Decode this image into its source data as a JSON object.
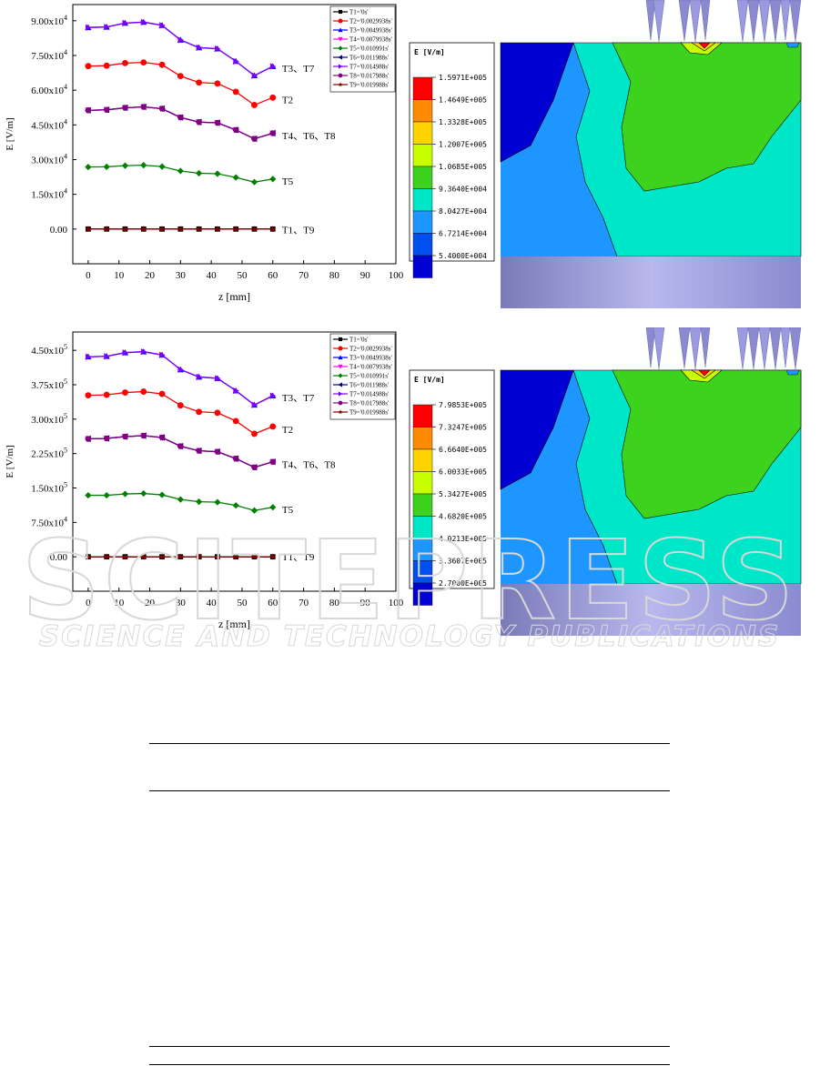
{
  "figures": [
    {
      "panel": "top",
      "colorbar": {
        "title": "E [V/m]",
        "levels": [
          "1.5971E+005",
          "1.4649E+005",
          "1.3328E+005",
          "1.2007E+005",
          "1.0685E+005",
          "9.3640E+004",
          "8.0427E+004",
          "6.7214E+004",
          "5.4000E+004"
        ],
        "colors": [
          "#ff0000",
          "#ff8c00",
          "#ffd200",
          "#c8ff00",
          "#3cd21e",
          "#00e6c8",
          "#1e96ff",
          "#0050f0",
          "#0000d2"
        ]
      }
    },
    {
      "panel": "bottom",
      "colorbar": {
        "title": "E [V/m]",
        "levels": [
          "7.9853E+005",
          "7.3247E+005",
          "6.6640E+005",
          "6.0033E+005",
          "5.3427E+005",
          "4.6820E+005",
          "4.0213E+005",
          "3.3607E+005",
          "2.7000E+005"
        ],
        "colors": [
          "#ff0000",
          "#ff8c00",
          "#ffd200",
          "#c8ff00",
          "#3cd21e",
          "#00e6c8",
          "#1e96ff",
          "#0050f0",
          "#0000d2"
        ]
      }
    }
  ],
  "watermark": {
    "main": "SCITEPRESS",
    "sub": "SCIENCE AND TECHNOLOGY PUBLICATIONS"
  },
  "chart_data": [
    {
      "type": "line",
      "xlabel": "z [mm]",
      "ylabel": "E [V/m]",
      "xlim": [
        -5,
        100
      ],
      "ylim": [
        -15000,
        97000
      ],
      "xticks": [
        "0",
        "10",
        "20",
        "30",
        "40",
        "50",
        "60",
        "70",
        "80",
        "90",
        "100"
      ],
      "yticks": [
        {
          "value": 0,
          "base": "0.00",
          "exp": ""
        },
        {
          "value": 15000,
          "base": "1.50x10",
          "exp": "4"
        },
        {
          "value": 30000,
          "base": "3.00x10",
          "exp": "4"
        },
        {
          "value": 45000,
          "base": "4.50x10",
          "exp": "4"
        },
        {
          "value": 60000,
          "base": "6.00x10",
          "exp": "4"
        },
        {
          "value": 75000,
          "base": "7.50x10",
          "exp": "4"
        },
        {
          "value": 90000,
          "base": "9.00x10",
          "exp": "4"
        }
      ],
      "x": [
        0,
        6,
        12,
        18,
        24,
        30,
        36,
        42,
        48,
        54,
        60
      ],
      "series": [
        {
          "name": "T1='0s'",
          "color": "#000000",
          "marker": "square",
          "values": [
            0,
            0,
            0,
            0,
            0,
            0,
            0,
            0,
            0,
            0,
            0
          ]
        },
        {
          "name": "T2='0.0029938s'",
          "color": "#ff0000",
          "marker": "circle",
          "values": [
            70400,
            70600,
            71700,
            72000,
            71000,
            66100,
            63300,
            62900,
            59300,
            53600,
            56800
          ]
        },
        {
          "name": "T3='0.0049938s'",
          "color": "#0000ff",
          "marker": "triangle-up",
          "values": [
            87100,
            87300,
            89000,
            89400,
            88000,
            81700,
            78400,
            77900,
            72500,
            66300,
            70300
          ]
        },
        {
          "name": "T4='0.0079938s'",
          "color": "#ff00ff",
          "marker": "triangle-down",
          "values": [
            51300,
            51500,
            52400,
            52800,
            52000,
            48200,
            46200,
            45900,
            42800,
            39000,
            41400
          ]
        },
        {
          "name": "T5='0.010991s'",
          "color": "#008000",
          "marker": "diamond",
          "values": [
            26800,
            26900,
            27400,
            27600,
            27000,
            25100,
            24100,
            23900,
            22300,
            20300,
            21600
          ]
        },
        {
          "name": "T6='0.011988s'",
          "color": "#000080",
          "marker": "triangle-left",
          "values": [
            51300,
            51500,
            52400,
            52800,
            52000,
            48200,
            46200,
            45900,
            42800,
            39000,
            41400
          ]
        },
        {
          "name": "T7='0.014988s'",
          "color": "#8000ff",
          "marker": "triangle-right",
          "values": [
            87100,
            87300,
            89000,
            89400,
            88000,
            81700,
            78400,
            77900,
            72500,
            66300,
            70300
          ]
        },
        {
          "name": "T8='0.017988s'",
          "color": "#800080",
          "marker": "hexagon",
          "values": [
            51300,
            51500,
            52400,
            52800,
            52000,
            48200,
            46200,
            45900,
            42800,
            39000,
            41400
          ]
        },
        {
          "name": "T9='0.019988s'",
          "color": "#800000",
          "marker": "star",
          "values": [
            0,
            0,
            0,
            0,
            0,
            0,
            0,
            0,
            0,
            0,
            0
          ]
        }
      ],
      "annotations": [
        {
          "text": "T3、T7",
          "x": 63,
          "y": 69500
        },
        {
          "text": "T2",
          "x": 63,
          "y": 56000
        },
        {
          "text": "T4、T6、T8",
          "x": 63,
          "y": 40500
        },
        {
          "text": "T5",
          "x": 63,
          "y": 20800
        },
        {
          "text": "T1、T9",
          "x": 63,
          "y": -200
        }
      ],
      "legend": "top-right",
      "grid": false
    },
    {
      "type": "line",
      "xlabel": "z [mm]",
      "ylabel": "E [V/m]",
      "xlim": [
        -5,
        100
      ],
      "ylim": [
        -75000,
        490000
      ],
      "xticks": [
        "0",
        "10",
        "20",
        "30",
        "40",
        "50",
        "60",
        "70",
        "80",
        "90",
        "100"
      ],
      "yticks": [
        {
          "value": 0,
          "base": "0.00",
          "exp": ""
        },
        {
          "value": 75000,
          "base": "7.50x10",
          "exp": "4"
        },
        {
          "value": 150000,
          "base": "1.50x10",
          "exp": "5"
        },
        {
          "value": 225000,
          "base": "2.25x10",
          "exp": "5"
        },
        {
          "value": 300000,
          "base": "3.00x10",
          "exp": "5"
        },
        {
          "value": 375000,
          "base": "3.75x10",
          "exp": "5"
        },
        {
          "value": 450000,
          "base": "4.50x10",
          "exp": "5"
        }
      ],
      "x": [
        0,
        6,
        12,
        18,
        24,
        30,
        36,
        42,
        48,
        54,
        60
      ],
      "series": [
        {
          "name": "T1='0s'",
          "color": "#000000",
          "marker": "square",
          "values": [
            0,
            0,
            0,
            0,
            0,
            0,
            0,
            0,
            0,
            0,
            0
          ]
        },
        {
          "name": "T2='0.0029938s'",
          "color": "#ff0000",
          "marker": "circle",
          "values": [
            352000,
            353000,
            358000,
            360000,
            355000,
            330000,
            316000,
            314000,
            296000,
            268000,
            284000
          ]
        },
        {
          "name": "T3='0.0049938s'",
          "color": "#0000ff",
          "marker": "triangle-up",
          "values": [
            436000,
            437000,
            445000,
            447000,
            440000,
            408000,
            392000,
            389000,
            362000,
            331000,
            351000
          ]
        },
        {
          "name": "T4='0.0079938s'",
          "color": "#ff00ff",
          "marker": "triangle-down",
          "values": [
            257000,
            258000,
            262000,
            264000,
            260000,
            241000,
            231000,
            229000,
            214000,
            195000,
            207000
          ]
        },
        {
          "name": "T5='0.010991s'",
          "color": "#008000",
          "marker": "diamond",
          "values": [
            134000,
            134000,
            137000,
            138000,
            135000,
            125000,
            120000,
            119000,
            112000,
            101000,
            108000
          ]
        },
        {
          "name": "T6='0.011988s'",
          "color": "#000080",
          "marker": "triangle-left",
          "values": [
            257000,
            258000,
            262000,
            264000,
            260000,
            241000,
            231000,
            229000,
            214000,
            195000,
            207000
          ]
        },
        {
          "name": "T7='0.014988s'",
          "color": "#8000ff",
          "marker": "triangle-right",
          "values": [
            436000,
            437000,
            445000,
            447000,
            440000,
            408000,
            392000,
            389000,
            362000,
            331000,
            351000
          ]
        },
        {
          "name": "T8='0.017988s'",
          "color": "#800080",
          "marker": "hexagon",
          "values": [
            257000,
            258000,
            262000,
            264000,
            260000,
            241000,
            231000,
            229000,
            214000,
            195000,
            207000
          ]
        },
        {
          "name": "T9='0.019988s'",
          "color": "#800000",
          "marker": "star",
          "values": [
            0,
            0,
            0,
            0,
            0,
            0,
            0,
            0,
            0,
            0,
            0
          ]
        }
      ],
      "annotations": [
        {
          "text": "T3、T7",
          "x": 63,
          "y": 347000
        },
        {
          "text": "T2",
          "x": 63,
          "y": 278000
        },
        {
          "text": "T4、T6、T8",
          "x": 63,
          "y": 202000
        },
        {
          "text": "T5",
          "x": 63,
          "y": 103000
        },
        {
          "text": "T1、T9",
          "x": 63,
          "y": 0
        }
      ],
      "legend": "top-right",
      "grid": false
    }
  ]
}
